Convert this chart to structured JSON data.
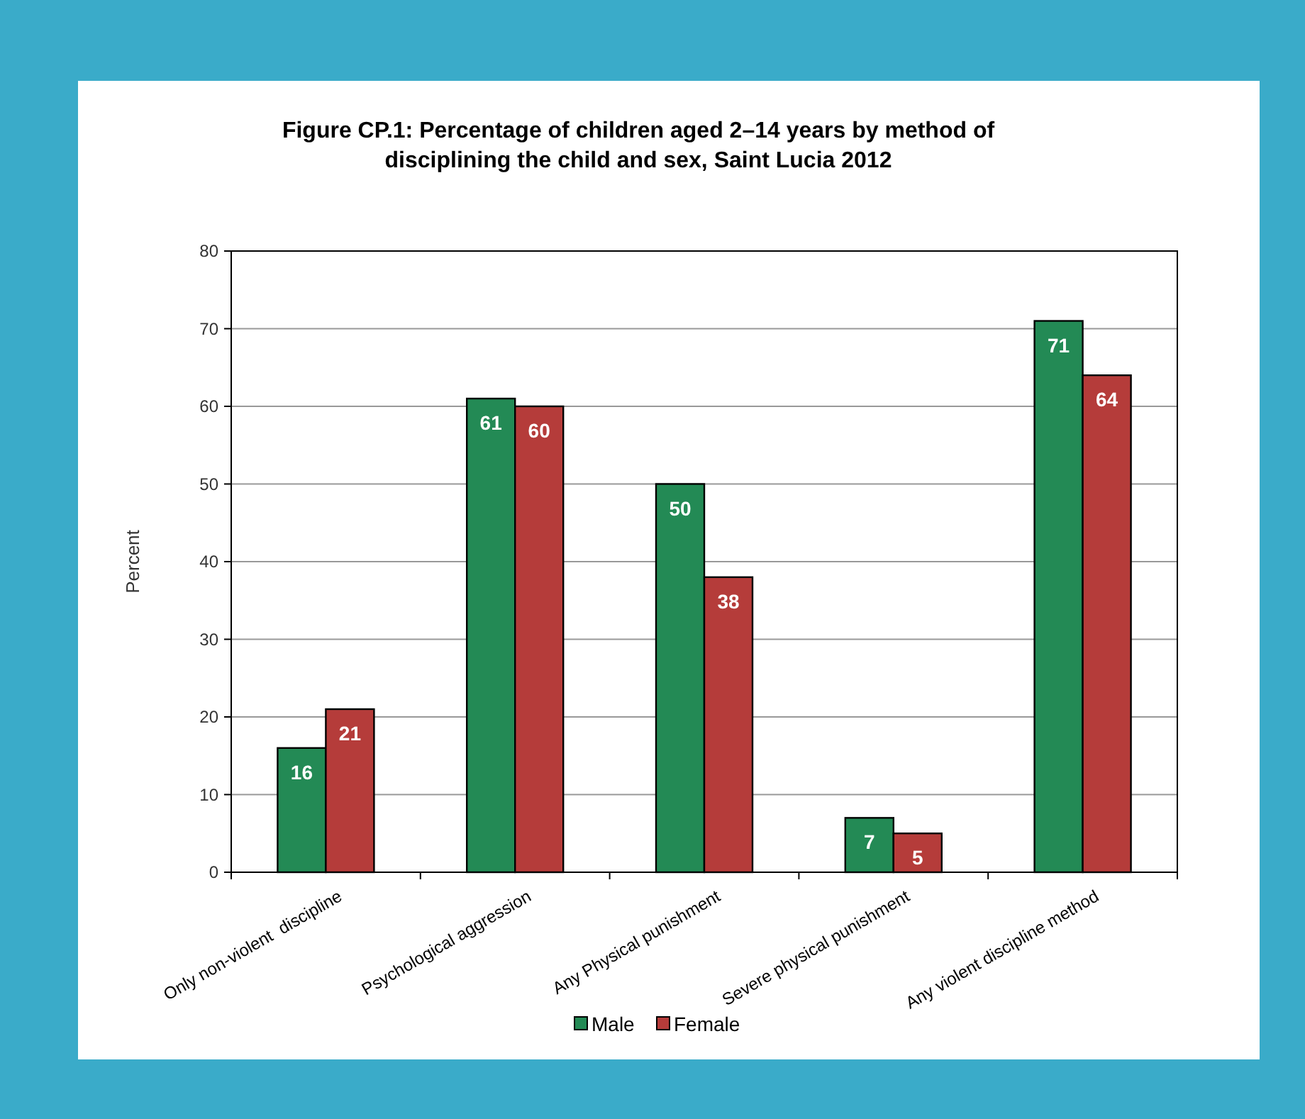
{
  "chart_data": {
    "type": "bar",
    "title": "Figure CP.1: Percentage of children aged 2–14 years by method of\ndisciplining the child and sex, Saint Lucia 2012",
    "ylabel": "Percent",
    "categories": [
      "Only non-violent  discipline",
      "Psychological aggression",
      "Any Physical punishment",
      "Severe physical punishment",
      "Any violent discipline method"
    ],
    "series": [
      {
        "name": "Male",
        "color": "#238a55",
        "values": [
          16,
          61,
          50,
          7,
          71
        ]
      },
      {
        "name": "Female",
        "color": "#b53c3a",
        "values": [
          21,
          60,
          38,
          5,
          64
        ]
      }
    ],
    "ylim": [
      0,
      80
    ],
    "yticks": [
      0,
      10,
      20,
      30,
      40,
      50,
      60,
      70,
      80
    ],
    "grid": "y",
    "legend": "bottom",
    "data_labels": true
  }
}
